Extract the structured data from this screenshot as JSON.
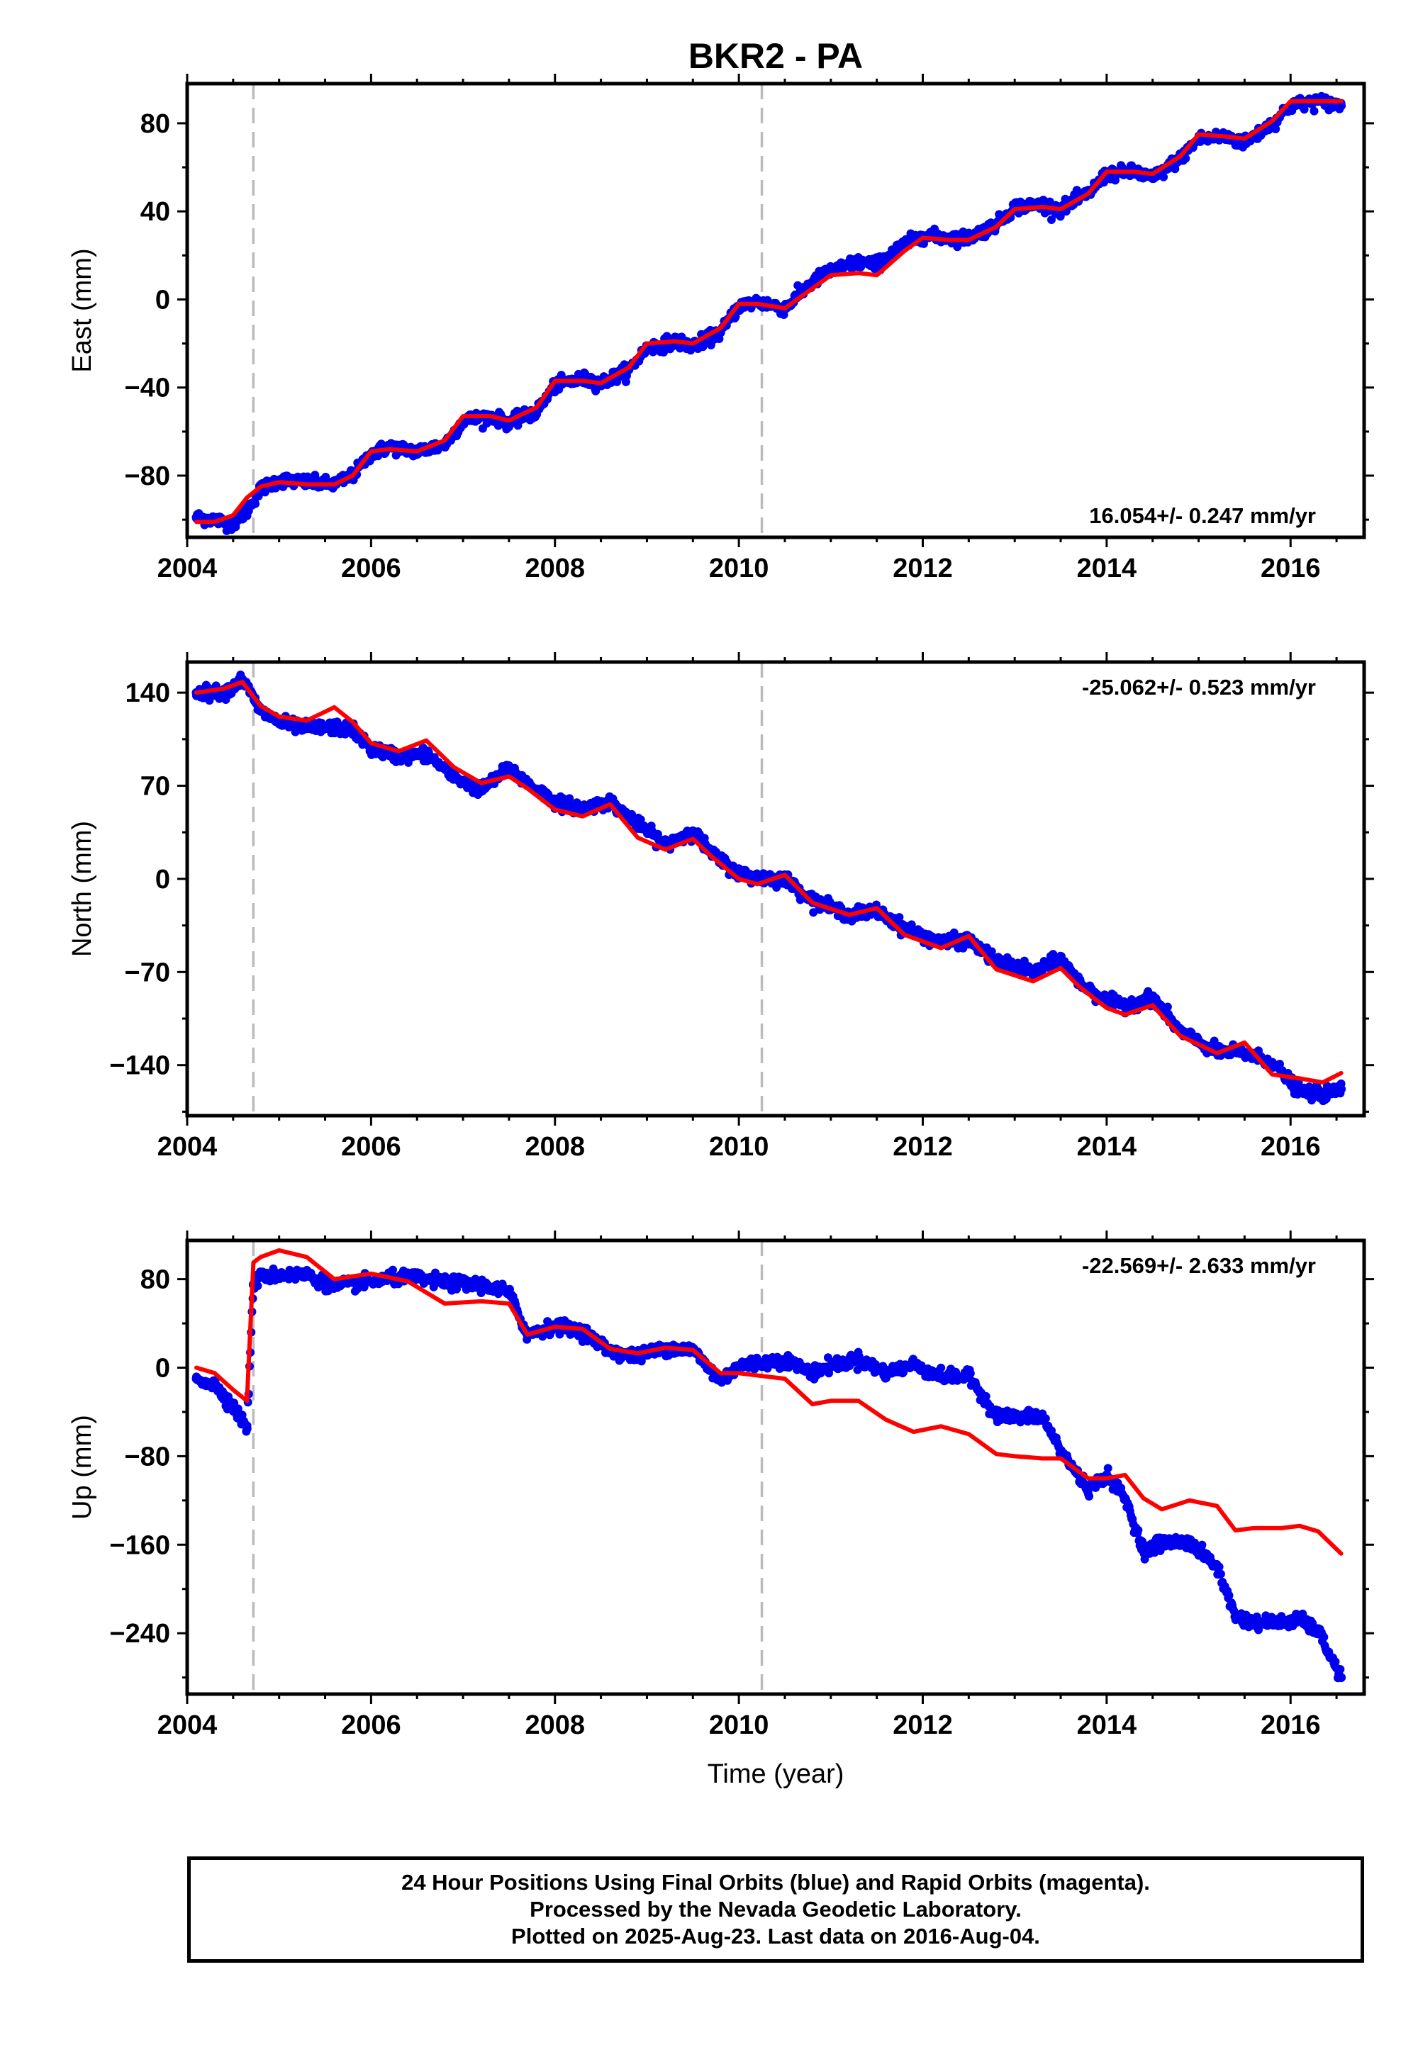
{
  "title": "BKR2 - PA",
  "xlabel": "Time (year)",
  "colors": {
    "final": "#0000ee",
    "rapid": "#ff0000",
    "event_line": "#bbbbbb",
    "frame": "#000000"
  },
  "footer": {
    "line1": "24 Hour Positions Using Final Orbits (blue) and Rapid Orbits (magenta).",
    "line2": "Processed by the Nevada Geodetic Laboratory.",
    "line3": "Plotted on 2025-Aug-23. Last data on 2016-Aug-04."
  },
  "chart_data": [
    {
      "type": "scatter",
      "ylabel": "East (mm)",
      "rate_label": "16.054+/- 0.247 mm/yr",
      "xlim": [
        2004.0,
        2016.8
      ],
      "ylim": [
        -108,
        98
      ],
      "xticks": [
        2004,
        2006,
        2008,
        2010,
        2012,
        2014,
        2016
      ],
      "yticks": [
        80,
        40,
        0,
        -40,
        -80
      ],
      "ytick_labels": [
        "80",
        "40",
        "0",
        "−40",
        "−80"
      ],
      "event_lines": [
        2004.72,
        2010.25
      ],
      "series": [
        {
          "role": "final_orbits_blue",
          "x": [
            2004.1,
            2004.3,
            2004.5,
            2004.65,
            2004.8,
            2005.0,
            2005.3,
            2005.6,
            2005.8,
            2006.0,
            2006.2,
            2006.5,
            2006.8,
            2007.0,
            2007.3,
            2007.5,
            2007.8,
            2008.0,
            2008.3,
            2008.5,
            2008.8,
            2009.0,
            2009.3,
            2009.5,
            2009.8,
            2010.0,
            2010.2,
            2010.5,
            2010.8,
            2011.0,
            2011.3,
            2011.5,
            2011.8,
            2012.0,
            2012.3,
            2012.5,
            2012.8,
            2013.0,
            2013.3,
            2013.5,
            2013.8,
            2014.0,
            2014.3,
            2014.5,
            2014.8,
            2015.0,
            2015.3,
            2015.5,
            2015.8,
            2016.0,
            2016.3,
            2016.55
          ],
          "y": [
            -99,
            -100,
            -102,
            -96,
            -86,
            -82,
            -83,
            -84,
            -80,
            -70,
            -67,
            -69,
            -66,
            -55,
            -53,
            -56,
            -51,
            -39,
            -36,
            -38,
            -32,
            -22,
            -19,
            -21,
            -15,
            -3,
            -1,
            -4,
            8,
            13,
            17,
            16,
            25,
            29,
            28,
            28,
            34,
            42,
            43,
            41,
            48,
            57,
            58,
            55,
            64,
            73,
            74,
            71,
            80,
            88,
            90,
            88
          ]
        },
        {
          "role": "rapid_orbits_red",
          "x": [
            2004.1,
            2004.3,
            2004.5,
            2004.65,
            2004.8,
            2005.0,
            2005.3,
            2005.6,
            2005.8,
            2006.0,
            2006.2,
            2006.5,
            2006.8,
            2007.0,
            2007.3,
            2007.5,
            2007.8,
            2008.0,
            2008.3,
            2008.5,
            2008.8,
            2009.0,
            2009.3,
            2009.5,
            2009.8,
            2010.0,
            2010.2,
            2010.5,
            2010.8,
            2011.0,
            2011.3,
            2011.5,
            2011.8,
            2012.0,
            2012.3,
            2012.5,
            2012.8,
            2013.0,
            2013.3,
            2013.5,
            2013.8,
            2014.0,
            2014.3,
            2014.5,
            2014.8,
            2015.0,
            2015.3,
            2015.5,
            2015.8,
            2016.0,
            2016.3,
            2016.55
          ],
          "y": [
            -101,
            -101,
            -98,
            -90,
            -85,
            -83,
            -84,
            -84,
            -80,
            -69,
            -68,
            -69,
            -64,
            -53,
            -53,
            -55,
            -49,
            -37,
            -37,
            -38,
            -31,
            -20,
            -19,
            -20,
            -13,
            -2,
            -2,
            -4,
            5,
            11,
            12,
            11,
            22,
            28,
            27,
            27,
            33,
            41,
            42,
            41,
            48,
            58,
            58,
            57,
            65,
            75,
            74,
            73,
            81,
            90,
            90,
            90
          ]
        }
      ]
    },
    {
      "type": "scatter",
      "ylabel": "North (mm)",
      "rate_label": "-25.062+/- 0.523 mm/yr",
      "xlim": [
        2004.0,
        2016.8
      ],
      "ylim": [
        -178,
        163
      ],
      "xticks": [
        2004,
        2006,
        2008,
        2010,
        2012,
        2014,
        2016
      ],
      "yticks": [
        140,
        70,
        0,
        -70,
        -140
      ],
      "ytick_labels": [
        "140",
        "70",
        "0",
        "−70",
        "−140"
      ],
      "event_lines": [
        2004.72,
        2010.25
      ],
      "series": [
        {
          "role": "final_orbits_blue",
          "x": [
            2004.1,
            2004.4,
            2004.6,
            2004.8,
            2005.0,
            2005.3,
            2005.6,
            2005.8,
            2006.0,
            2006.3,
            2006.6,
            2006.9,
            2007.2,
            2007.5,
            2007.7,
            2008.0,
            2008.3,
            2008.6,
            2008.9,
            2009.2,
            2009.5,
            2009.7,
            2010.0,
            2010.2,
            2010.5,
            2010.8,
            2011.2,
            2011.5,
            2011.8,
            2012.2,
            2012.5,
            2012.8,
            2013.2,
            2013.5,
            2013.7,
            2014.0,
            2014.2,
            2014.5,
            2014.8,
            2015.2,
            2015.5,
            2015.8,
            2016.1,
            2016.35,
            2016.55
          ],
          "y": [
            140,
            140,
            150,
            126,
            118,
            113,
            114,
            112,
            98,
            92,
            94,
            77,
            67,
            83,
            72,
            58,
            53,
            58,
            41,
            26,
            36,
            19,
            4,
            1,
            0,
            -16,
            -27,
            -24,
            -37,
            -48,
            -46,
            -62,
            -70,
            -60,
            -78,
            -92,
            -95,
            -89,
            -115,
            -130,
            -131,
            -138,
            -160,
            -162,
            -158
          ]
        },
        {
          "role": "rapid_orbits_red",
          "x": [
            2004.1,
            2004.4,
            2004.6,
            2004.8,
            2005.0,
            2005.3,
            2005.6,
            2005.8,
            2006.0,
            2006.3,
            2006.6,
            2006.9,
            2007.2,
            2007.5,
            2007.7,
            2008.0,
            2008.3,
            2008.6,
            2008.9,
            2009.2,
            2009.5,
            2009.7,
            2010.0,
            2010.2,
            2010.5,
            2010.8,
            2011.2,
            2011.5,
            2011.8,
            2012.2,
            2012.5,
            2012.8,
            2013.2,
            2013.5,
            2013.7,
            2014.0,
            2014.2,
            2014.5,
            2014.8,
            2015.2,
            2015.5,
            2015.8,
            2016.1,
            2016.35,
            2016.55
          ],
          "y": [
            140,
            143,
            148,
            130,
            122,
            119,
            129,
            118,
            102,
            96,
            104,
            84,
            72,
            77,
            68,
            52,
            47,
            56,
            31,
            22,
            30,
            17,
            0,
            -4,
            3,
            -18,
            -27,
            -22,
            -42,
            -52,
            -43,
            -68,
            -77,
            -67,
            -81,
            -97,
            -102,
            -95,
            -118,
            -131,
            -123,
            -147,
            -150,
            -153,
            -146
          ]
        }
      ]
    },
    {
      "type": "scatter",
      "ylabel": "Up (mm)",
      "rate_label": "-22.569+/- 2.633 mm/yr",
      "xlim": [
        2004.0,
        2016.8
      ],
      "ylim": [
        -295,
        115
      ],
      "xticks": [
        2004,
        2006,
        2008,
        2010,
        2012,
        2014,
        2016
      ],
      "yticks": [
        80,
        0,
        -80,
        -160,
        -240
      ],
      "ytick_labels": [
        "80",
        "0",
        "−80",
        "−160",
        "−240"
      ],
      "event_lines": [
        2004.72,
        2010.25
      ],
      "series": [
        {
          "role": "final_orbits_blue",
          "x": [
            2004.1,
            2004.3,
            2004.5,
            2004.65,
            2004.72,
            2004.8,
            2005.0,
            2005.3,
            2005.6,
            2006.0,
            2006.4,
            2006.8,
            2007.2,
            2007.5,
            2007.7,
            2008.0,
            2008.3,
            2008.6,
            2008.9,
            2009.2,
            2009.5,
            2009.8,
            2010.0,
            2010.5,
            2010.8,
            2011.0,
            2011.3,
            2011.6,
            2011.9,
            2012.2,
            2012.5,
            2012.8,
            2013.0,
            2013.3,
            2013.5,
            2013.8,
            2014.0,
            2014.2,
            2014.4,
            2014.6,
            2014.9,
            2015.2,
            2015.4,
            2015.6,
            2015.9,
            2016.1,
            2016.3,
            2016.55
          ],
          "y": [
            -10,
            -15,
            -35,
            -55,
            75,
            82,
            84,
            84,
            73,
            78,
            82,
            77,
            75,
            68,
            30,
            38,
            33,
            15,
            10,
            18,
            16,
            -12,
            2,
            7,
            -5,
            2,
            8,
            -5,
            3,
            -8,
            -8,
            -43,
            -45,
            -44,
            -75,
            -110,
            -97,
            -118,
            -165,
            -158,
            -158,
            -180,
            -225,
            -230,
            -230,
            -228,
            -238,
            -280
          ]
        },
        {
          "role": "rapid_orbits_red",
          "x": [
            2004.1,
            2004.3,
            2004.5,
            2004.65,
            2004.72,
            2004.8,
            2005.0,
            2005.3,
            2005.6,
            2006.0,
            2006.4,
            2006.8,
            2007.2,
            2007.5,
            2007.7,
            2008.0,
            2008.3,
            2008.6,
            2008.9,
            2009.2,
            2009.5,
            2009.8,
            2010.0,
            2010.5,
            2010.8,
            2011.0,
            2011.3,
            2011.6,
            2011.9,
            2012.2,
            2012.5,
            2012.8,
            2013.0,
            2013.3,
            2013.5,
            2013.8,
            2014.0,
            2014.2,
            2014.4,
            2014.6,
            2014.9,
            2015.2,
            2015.4,
            2015.6,
            2015.9,
            2016.1,
            2016.3,
            2016.55
          ],
          "y": [
            0,
            -5,
            -20,
            -30,
            95,
            100,
            106,
            100,
            80,
            85,
            78,
            58,
            60,
            58,
            30,
            37,
            35,
            17,
            13,
            18,
            16,
            -5,
            -5,
            -10,
            -33,
            -30,
            -30,
            -47,
            -58,
            -53,
            -60,
            -78,
            -80,
            -82,
            -82,
            -100,
            -100,
            -97,
            -118,
            -128,
            -120,
            -125,
            -147,
            -145,
            -145,
            -143,
            -148,
            -168
          ]
        }
      ]
    }
  ]
}
